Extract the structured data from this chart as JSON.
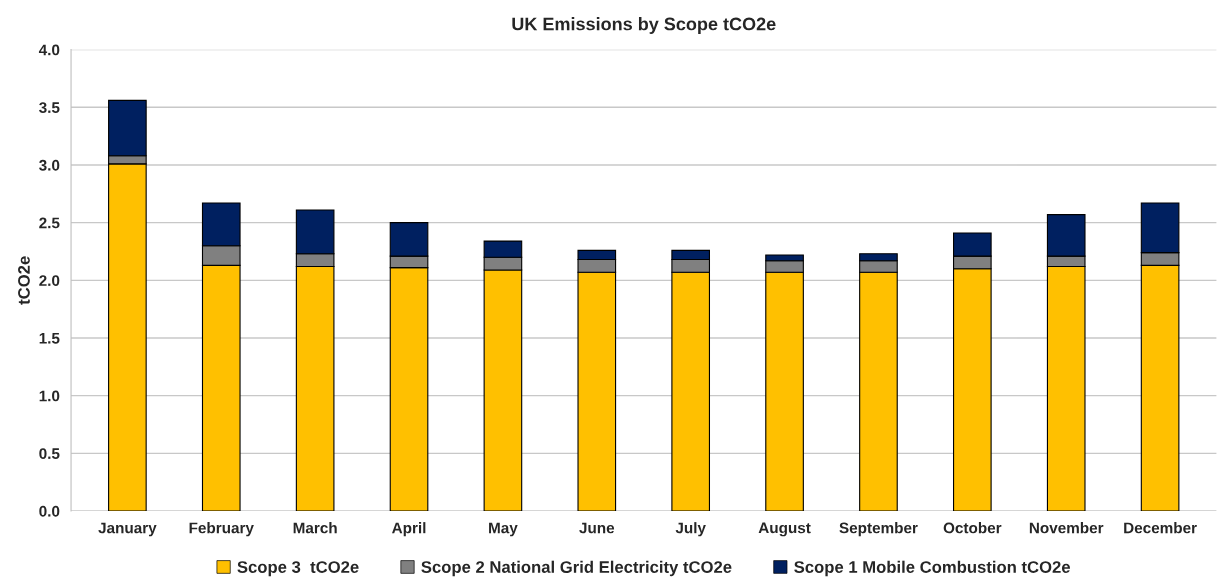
{
  "chart_data": {
    "type": "bar",
    "title": "UK Emissions by Scope tCO2e",
    "ylabel": "tCO2e",
    "categories": [
      "January",
      "February",
      "March",
      "April",
      "May",
      "June",
      "July",
      "August",
      "September",
      "October",
      "November",
      "December"
    ],
    "stacked": true,
    "series": [
      {
        "name": "Scope 3  tCO2e",
        "color": "#ffc000",
        "values": [
          3.01,
          2.13,
          2.12,
          2.11,
          2.09,
          2.07,
          2.07,
          2.07,
          2.07,
          2.1,
          2.12,
          2.13
        ]
      },
      {
        "name": "Scope 2 National Grid Electricity tCO2e",
        "color": "#808080",
        "values": [
          0.07,
          0.17,
          0.11,
          0.1,
          0.11,
          0.11,
          0.11,
          0.1,
          0.1,
          0.11,
          0.09,
          0.11
        ]
      },
      {
        "name": "Scope 1 Mobile Combustion tCO2e",
        "color": "#002060",
        "values": [
          0.48,
          0.37,
          0.38,
          0.29,
          0.14,
          0.08,
          0.08,
          0.05,
          0.06,
          0.2,
          0.36,
          0.43
        ]
      }
    ],
    "ylim": [
      0,
      4.0
    ],
    "yticks": [
      {
        "value": 0,
        "label": "0.0"
      },
      {
        "value": 0.5,
        "label": "0.5"
      },
      {
        "value": 1,
        "label": "1.0"
      },
      {
        "value": 1.5,
        "label": "1.5"
      },
      {
        "value": 2,
        "label": "2.0"
      },
      {
        "value": 2.5,
        "label": "2.5"
      },
      {
        "value": 3,
        "label": "3.0"
      },
      {
        "value": 3.5,
        "label": "3.5"
      },
      {
        "value": 4,
        "label": "4.0"
      }
    ],
    "grid": "y",
    "legend": "bottom"
  }
}
